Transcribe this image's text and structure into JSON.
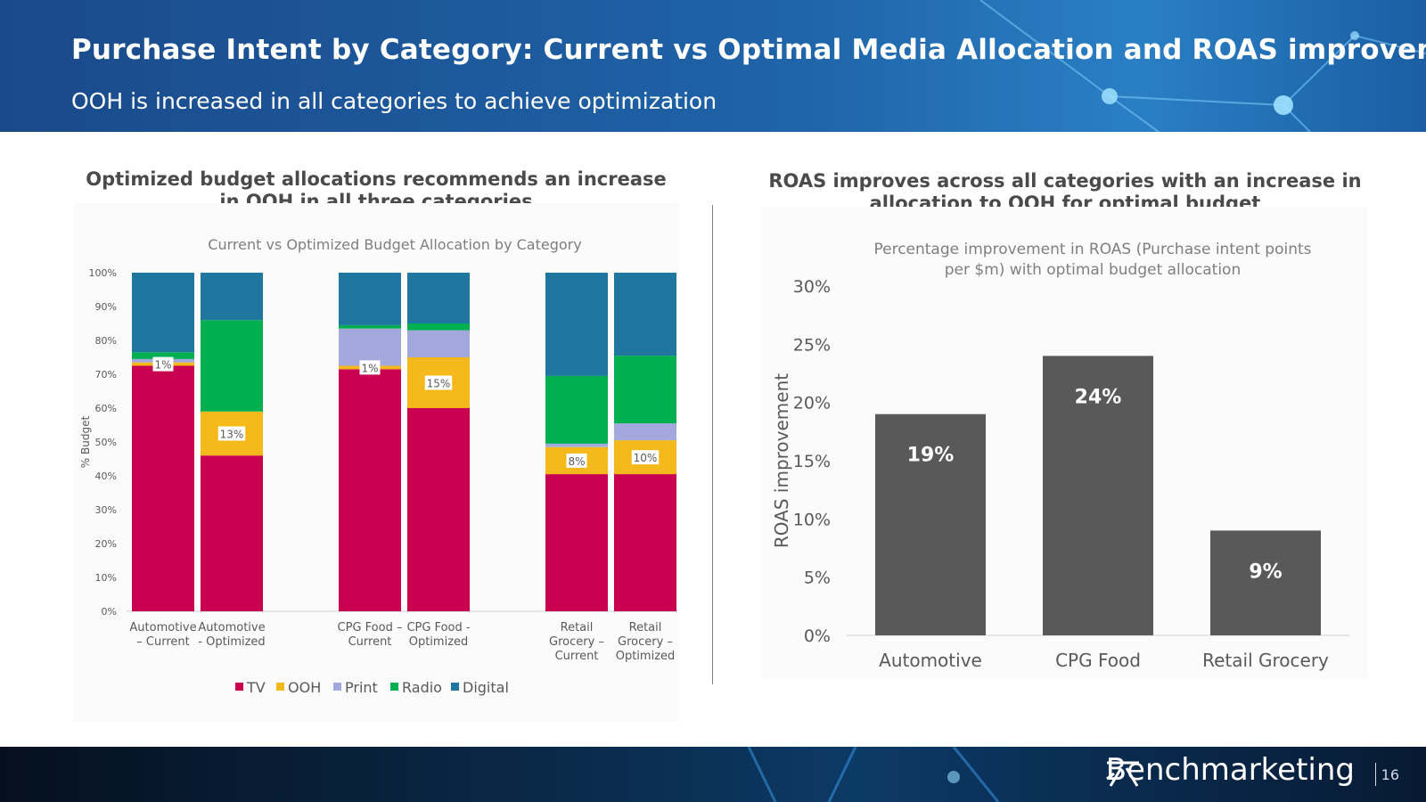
{
  "slide": {
    "title": "Purchase Intent by Category: Current vs Optimal Media Allocation and ROAS improvement",
    "subtitle": "OOH is increased in all categories to achieve optimization",
    "left_heading_line1": "Optimized budget allocations recommends an increase",
    "left_heading_line2": "in OOH in all three categories",
    "right_heading_line1": "ROAS improves across all categories with an increase in",
    "right_heading_line2": "allocation to OOH for optimal budget",
    "brand": "Benchmarketing",
    "page_number": "16"
  },
  "colors": {
    "header_blue": "#1f63a8",
    "TV": "#c8004f",
    "OOH": "#f5b91b",
    "Print": "#a3a9dc",
    "Radio": "#00b050",
    "Digital": "#1f77a0",
    "roas_bar": "#595959"
  },
  "chart_data": [
    {
      "type": "bar",
      "stacked": true,
      "title": "Current vs Optimized Budget Allocation by Category",
      "ylabel": "% Budget",
      "xlabel": "",
      "ylim": [
        0,
        100
      ],
      "yticks": [
        "0%",
        "10%",
        "20%",
        "30%",
        "40%",
        "50%",
        "60%",
        "70%",
        "80%",
        "90%",
        "100%"
      ],
      "categories": [
        [
          "Automotive",
          "– Current"
        ],
        [
          "Automotive",
          "- Optimized"
        ],
        [
          "CPG Food –",
          "Current"
        ],
        [
          "CPG Food -",
          "Optimized"
        ],
        [
          "Retail",
          "Grocery –",
          "Current"
        ],
        [
          "Retail",
          "Grocery –",
          "Optimized"
        ]
      ],
      "series": [
        {
          "name": "TV",
          "values": [
            72.5,
            46,
            71.5,
            60,
            40.5,
            40.5
          ]
        },
        {
          "name": "OOH",
          "values": [
            1,
            13,
            1,
            15,
            8,
            10
          ]
        },
        {
          "name": "Print",
          "values": [
            1,
            0,
            11,
            8,
            1,
            5
          ]
        },
        {
          "name": "Radio",
          "values": [
            2,
            27,
            1,
            2,
            20,
            20
          ]
        },
        {
          "name": "Digital",
          "values": [
            23.5,
            14,
            15.5,
            15,
            30.5,
            24.5
          ]
        }
      ],
      "ooh_labels": [
        "1%",
        "13%",
        "1%",
        "15%",
        "8%",
        "10%"
      ],
      "legend": [
        "TV",
        "OOH",
        "Print",
        "Radio",
        "Digital"
      ],
      "legend_position": "bottom"
    },
    {
      "type": "bar",
      "title": "Percentage improvement in ROAS (Purchase intent points per $m) with optimal budget allocation",
      "title_line1": "Percentage improvement in ROAS (Purchase intent points",
      "title_line2": "per $m) with optimal budget allocation",
      "ylabel": "ROAS improvement",
      "xlabel": "",
      "ylim": [
        0,
        30
      ],
      "yticks": [
        "0%",
        "5%",
        "10%",
        "15%",
        "20%",
        "25%",
        "30%"
      ],
      "categories": [
        "Automotive",
        "CPG Food",
        "Retail Grocery"
      ],
      "values": [
        19,
        24,
        9
      ],
      "data_labels": [
        "19%",
        "24%",
        "9%"
      ]
    }
  ]
}
